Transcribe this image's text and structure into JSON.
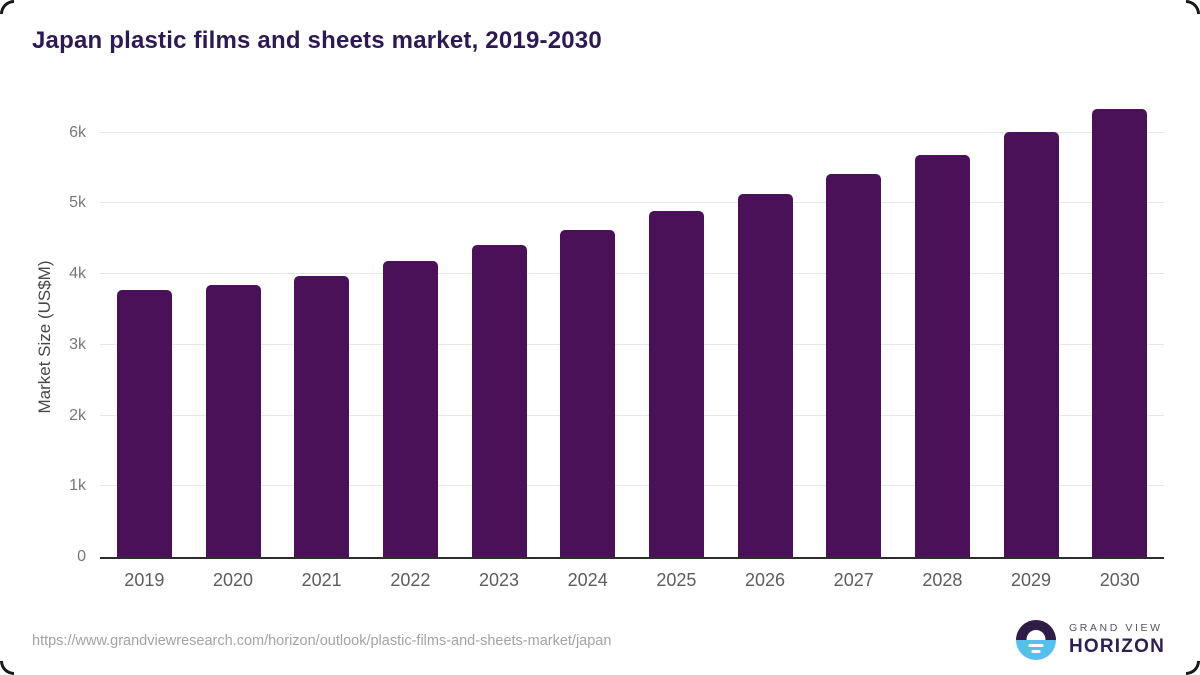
{
  "page": {
    "title": "Japan plastic films and sheets market, 2019-2030",
    "source_url": "https://www.grandviewresearch.com/horizon/outlook/plastic-films-and-sheets-market/japan"
  },
  "logo": {
    "line1": "GRAND VIEW",
    "line2": "HORIZON"
  },
  "colors": {
    "bar": "#4a1158",
    "title": "#2e1a52",
    "axis_line": "#2d2d2d",
    "gridline": "#e7e7e7",
    "y_tick": "#787878",
    "x_tick": "#5d5d5d",
    "logo_purple": "#2e1d47",
    "logo_blue": "#55bfef"
  },
  "chart_data": {
    "type": "bar",
    "title": "Japan plastic films and sheets market, 2019-2030",
    "xlabel": "",
    "ylabel": "Market Size (US$M)",
    "categories": [
      "2019",
      "2020",
      "2021",
      "2022",
      "2023",
      "2024",
      "2025",
      "2026",
      "2027",
      "2028",
      "2029",
      "2030"
    ],
    "values": [
      3780,
      3840,
      3970,
      4190,
      4410,
      4630,
      4890,
      5140,
      5410,
      5690,
      6010,
      6330
    ],
    "yticks": [
      {
        "label": "0",
        "value": 0
      },
      {
        "label": "1k",
        "value": 1000
      },
      {
        "label": "2k",
        "value": 2000
      },
      {
        "label": "3k",
        "value": 3000
      },
      {
        "label": "4k",
        "value": 4000
      },
      {
        "label": "5k",
        "value": 5000
      },
      {
        "label": "6k",
        "value": 6000
      }
    ],
    "ylim": [
      0,
      6350
    ],
    "grid": true,
    "legend": false,
    "bar_color": "#4a1158"
  }
}
